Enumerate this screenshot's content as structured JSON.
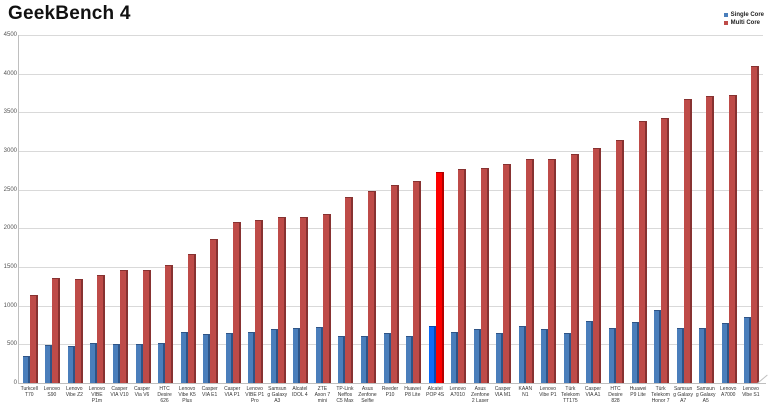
{
  "title": "GeekBench 4",
  "legend": {
    "single_label": "Single Core",
    "multi_label": "Multi Core"
  },
  "colors": {
    "single_front": "#4A7EBB",
    "single_side": "#2F5486",
    "multi_front": "#BE4B48",
    "multi_side": "#873231",
    "highlight_single_front": "#0B6BF7",
    "highlight_single_side": "#0748AE",
    "highlight_multi_front": "#FE0000",
    "highlight_multi_side": "#B50000",
    "gridline": "#d9d9d9",
    "axis": "#bfbfbf"
  },
  "chart_data": {
    "type": "bar",
    "title": "GeekBench 4",
    "xlabel": "",
    "ylabel": "",
    "ylim": [
      0,
      4500
    ],
    "ytick_step": 500,
    "grid": true,
    "legend_position": "top-right",
    "highlight_category": "Alcatel POP 4S",
    "highlight_index": 18,
    "categories": [
      "Turkcell T70",
      "Lenovo S90",
      "Lenovo Vibe Z2",
      "Lenovo VIBE P1m",
      "Casper VIA V10",
      "Casper Via V6",
      "HTC Desire 626",
      "Lenovo Vibe K5 Plus",
      "Casper VIA E1",
      "Casper VIA P1",
      "Lenovo VIBE P1 Pro",
      "Samsung Galaxy A3 (2016)",
      "Alcatel IDOL 4",
      "ZTE Axon 7 mini",
      "TP-Link Neffos C5 Max",
      "Asus Zenfone Selfie",
      "Reeder P10",
      "Huawei P8 Lite",
      "Alcatel POP 4S",
      "Lenovo A7010",
      "Asus Zenfone 2 Laser",
      "Casper VIA M1",
      "KAAN N1",
      "Lenovo Vibe P1",
      "Türk Telekom TT175",
      "Casper VIA A1",
      "HTC Desire 828",
      "Huawei P9 Lite",
      "Türk Telekom Honor 7",
      "Samsung Galaxy A7 (2016)",
      "Samsung Galaxy A5 (2016)",
      "Lenovo A7000",
      "Lenovo Vibe S1"
    ],
    "series": [
      {
        "name": "Single Core",
        "values": [
          340,
          475,
          460,
          505,
          490,
          490,
          500,
          650,
          620,
          630,
          650,
          690,
          705,
          715,
          600,
          600,
          630,
          590,
          730,
          645,
          685,
          630,
          730,
          685,
          630,
          785,
          705,
          780,
          935,
          705,
          695,
          760,
          835
        ]
      },
      {
        "name": "Multi Core",
        "values": [
          1130,
          1340,
          1335,
          1390,
          1445,
          1455,
          1515,
          1655,
          1855,
          2070,
          2100,
          2130,
          2140,
          2170,
          2390,
          2470,
          2550,
          2600,
          2720,
          2750,
          2770,
          2820,
          2880,
          2890,
          2945,
          3030,
          3130,
          3370,
          3410,
          3660,
          3700,
          3710,
          4090
        ]
      }
    ]
  }
}
